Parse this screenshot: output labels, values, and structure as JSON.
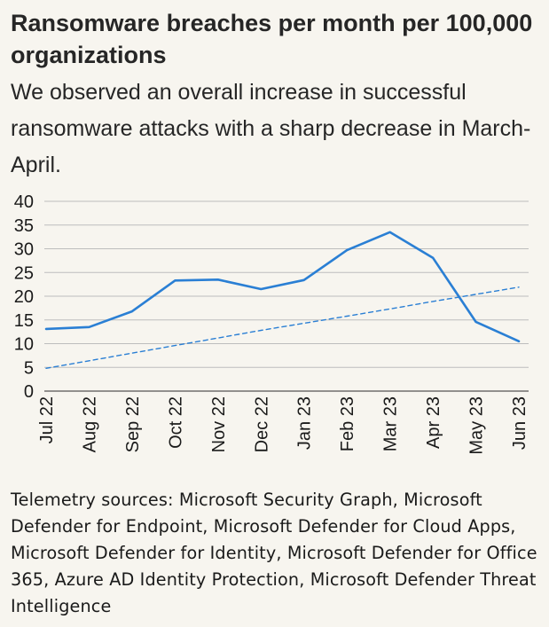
{
  "title": "Ransomware breaches per month per 100,000 organizations",
  "subtitle": "We observed an overall increase in successful ransomware attacks with a sharp decrease in March-April.",
  "footer": "Telemetry sources: Microsoft Security Graph, Microsoft Defender for Endpoint, Microsoft Defender for Cloud Apps, Microsoft Defender for Identity, Microsoft Defender for Office 365, Azure AD Identity Protection, Microsoft Defender Threat Intelligence",
  "colors": {
    "line": "#2a7fd4",
    "trend": "#2a7fd4",
    "grid": "#bdbdbd",
    "axis": "#555555"
  },
  "chart_data": {
    "type": "line",
    "title": "Ransomware breaches per month per 100,000 organizations",
    "xlabel": "",
    "ylabel": "",
    "ylim": [
      0,
      40
    ],
    "yticks": [
      0,
      5,
      10,
      15,
      20,
      25,
      30,
      35,
      40
    ],
    "grid": true,
    "categories": [
      "Jul 22",
      "Aug 22",
      "Sep 22",
      "Oct 22",
      "Nov 22",
      "Dec 22",
      "Jan 23",
      "Feb 23",
      "Mar 23",
      "Apr 23",
      "May 23",
      "Jun 23"
    ],
    "series": [
      {
        "name": "Breaches",
        "style": "solid",
        "values": [
          13.1,
          13.5,
          16.8,
          23.3,
          23.5,
          21.5,
          23.4,
          29.7,
          33.5,
          28.1,
          14.6,
          10.5
        ]
      },
      {
        "name": "Trend",
        "style": "dashed",
        "values": [
          4.8,
          6.4,
          8.0,
          9.6,
          11.2,
          12.8,
          14.3,
          15.8,
          17.3,
          18.9,
          20.4,
          21.9
        ]
      }
    ]
  }
}
